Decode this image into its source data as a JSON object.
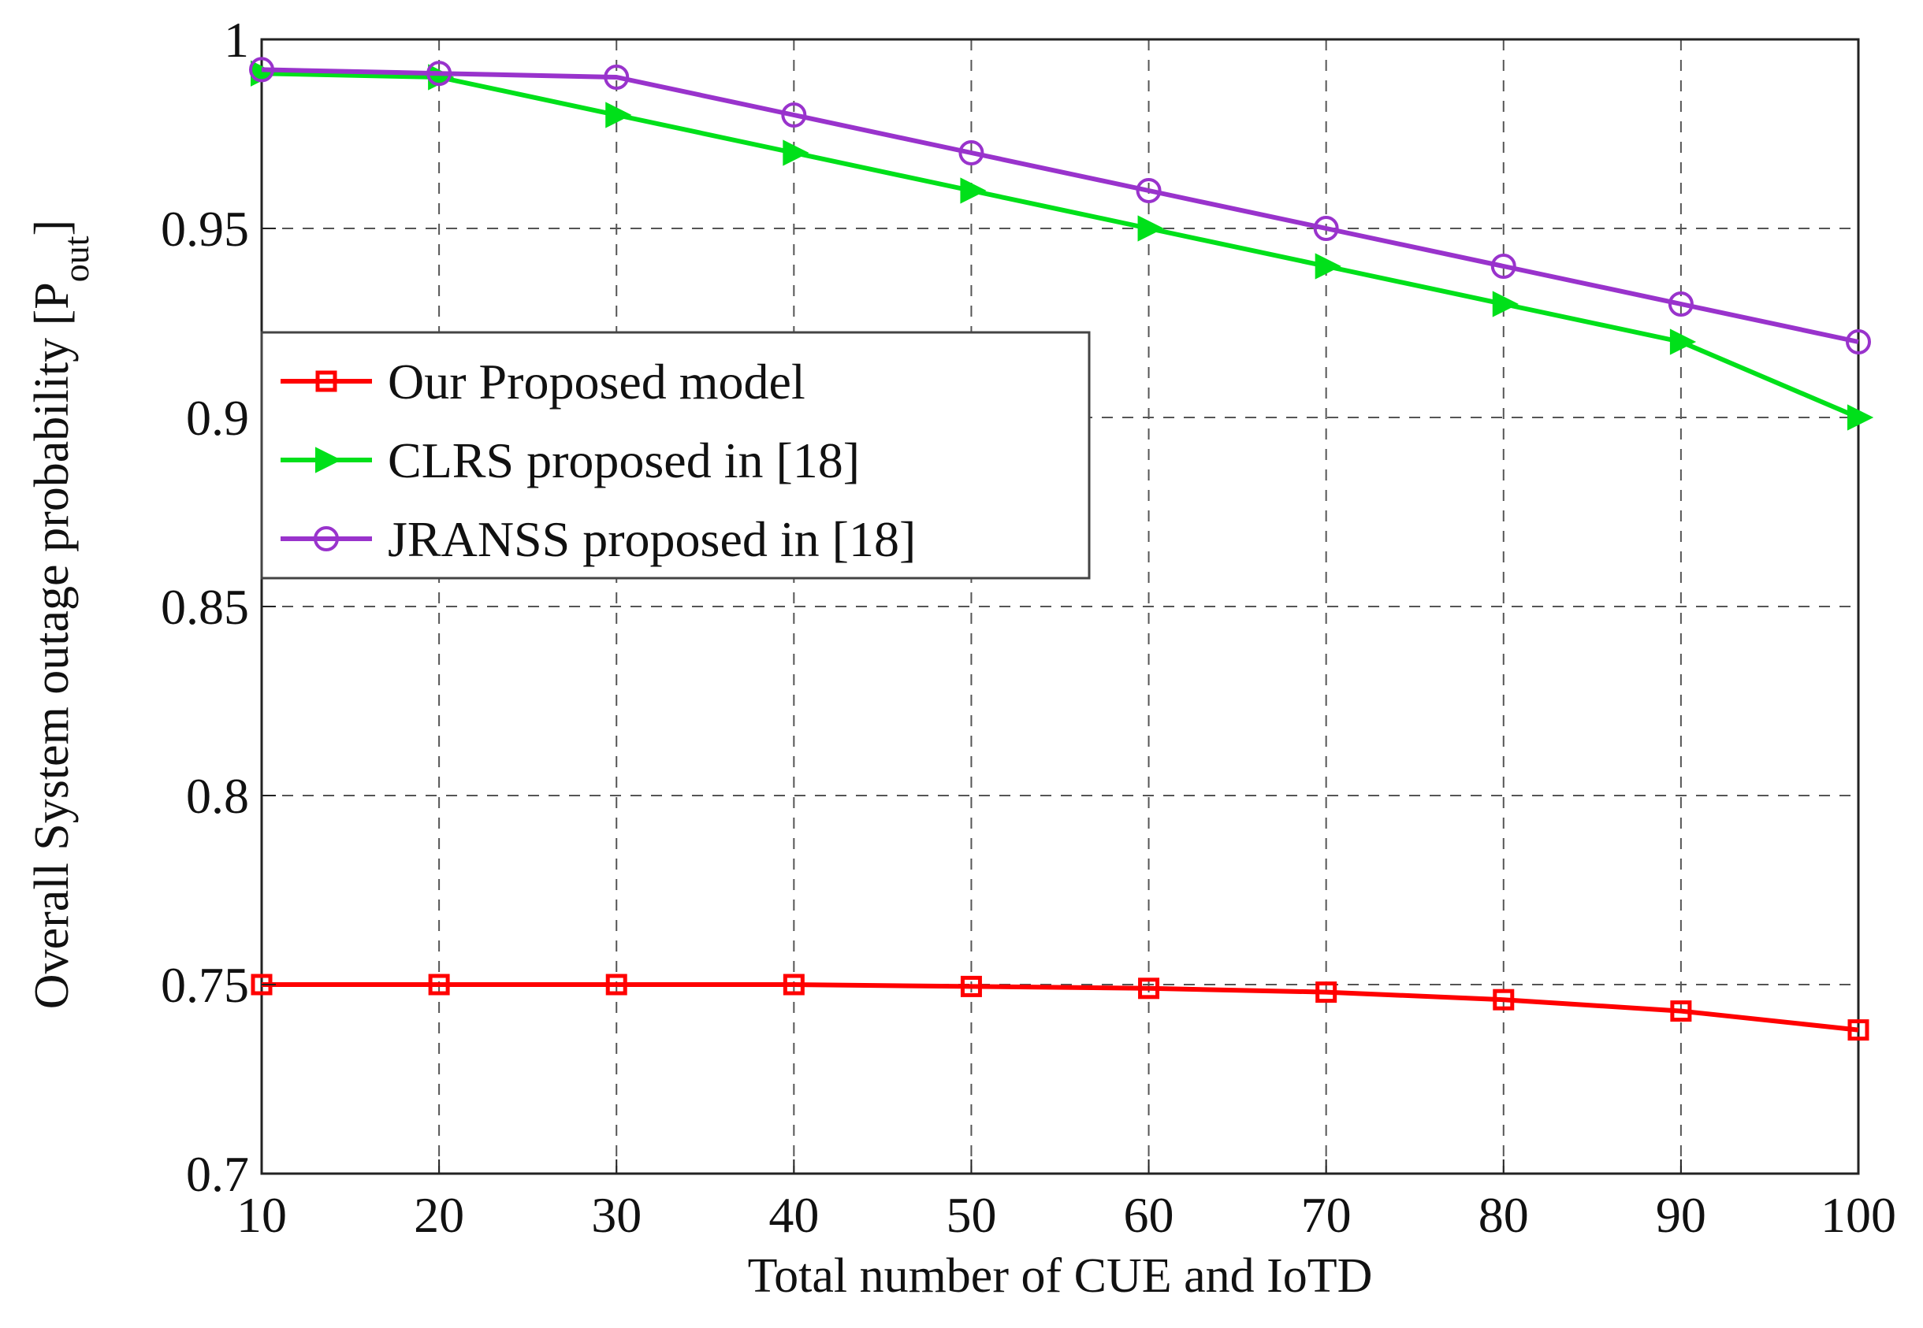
{
  "chart_data": {
    "type": "line",
    "title": "",
    "xlabel": "Total number of CUE and IoTD",
    "ylabel_main": "Overall System outage probability [P",
    "ylabel_sub": "out",
    "ylabel_close": "]",
    "xlim": [
      10,
      100
    ],
    "ylim": [
      0.7,
      1
    ],
    "x": [
      10,
      20,
      30,
      40,
      50,
      60,
      70,
      80,
      90,
      100
    ],
    "xticks": [
      "10",
      "20",
      "30",
      "40",
      "50",
      "60",
      "70",
      "80",
      "90",
      "100"
    ],
    "yticks": [
      {
        "value": 0.7,
        "label": "0.7"
      },
      {
        "value": 0.75,
        "label": "0.75"
      },
      {
        "value": 0.8,
        "label": "0.8"
      },
      {
        "value": 0.85,
        "label": "0.85"
      },
      {
        "value": 0.9,
        "label": "0.9"
      },
      {
        "value": 0.95,
        "label": "0.95"
      },
      {
        "value": 1.0,
        "label": "1"
      }
    ],
    "grid": true,
    "legend_position": "upper-left",
    "series": [
      {
        "name": "Our Proposed model",
        "color": "#ff0000",
        "marker": "square",
        "values": [
          0.75,
          0.75,
          0.75,
          0.75,
          0.7495,
          0.749,
          0.748,
          0.746,
          0.743,
          0.738
        ]
      },
      {
        "name": "CLRS proposed in [18]",
        "color": "#00e01a",
        "marker": "triangle-right",
        "values": [
          0.991,
          0.99,
          0.98,
          0.97,
          0.96,
          0.95,
          0.94,
          0.93,
          0.92,
          0.9
        ]
      },
      {
        "name": "JRANSS proposed in [18]",
        "color": "#9933cc",
        "marker": "circle",
        "values": [
          0.992,
          0.991,
          0.99,
          0.98,
          0.97,
          0.96,
          0.95,
          0.94,
          0.93,
          0.92
        ]
      }
    ]
  }
}
